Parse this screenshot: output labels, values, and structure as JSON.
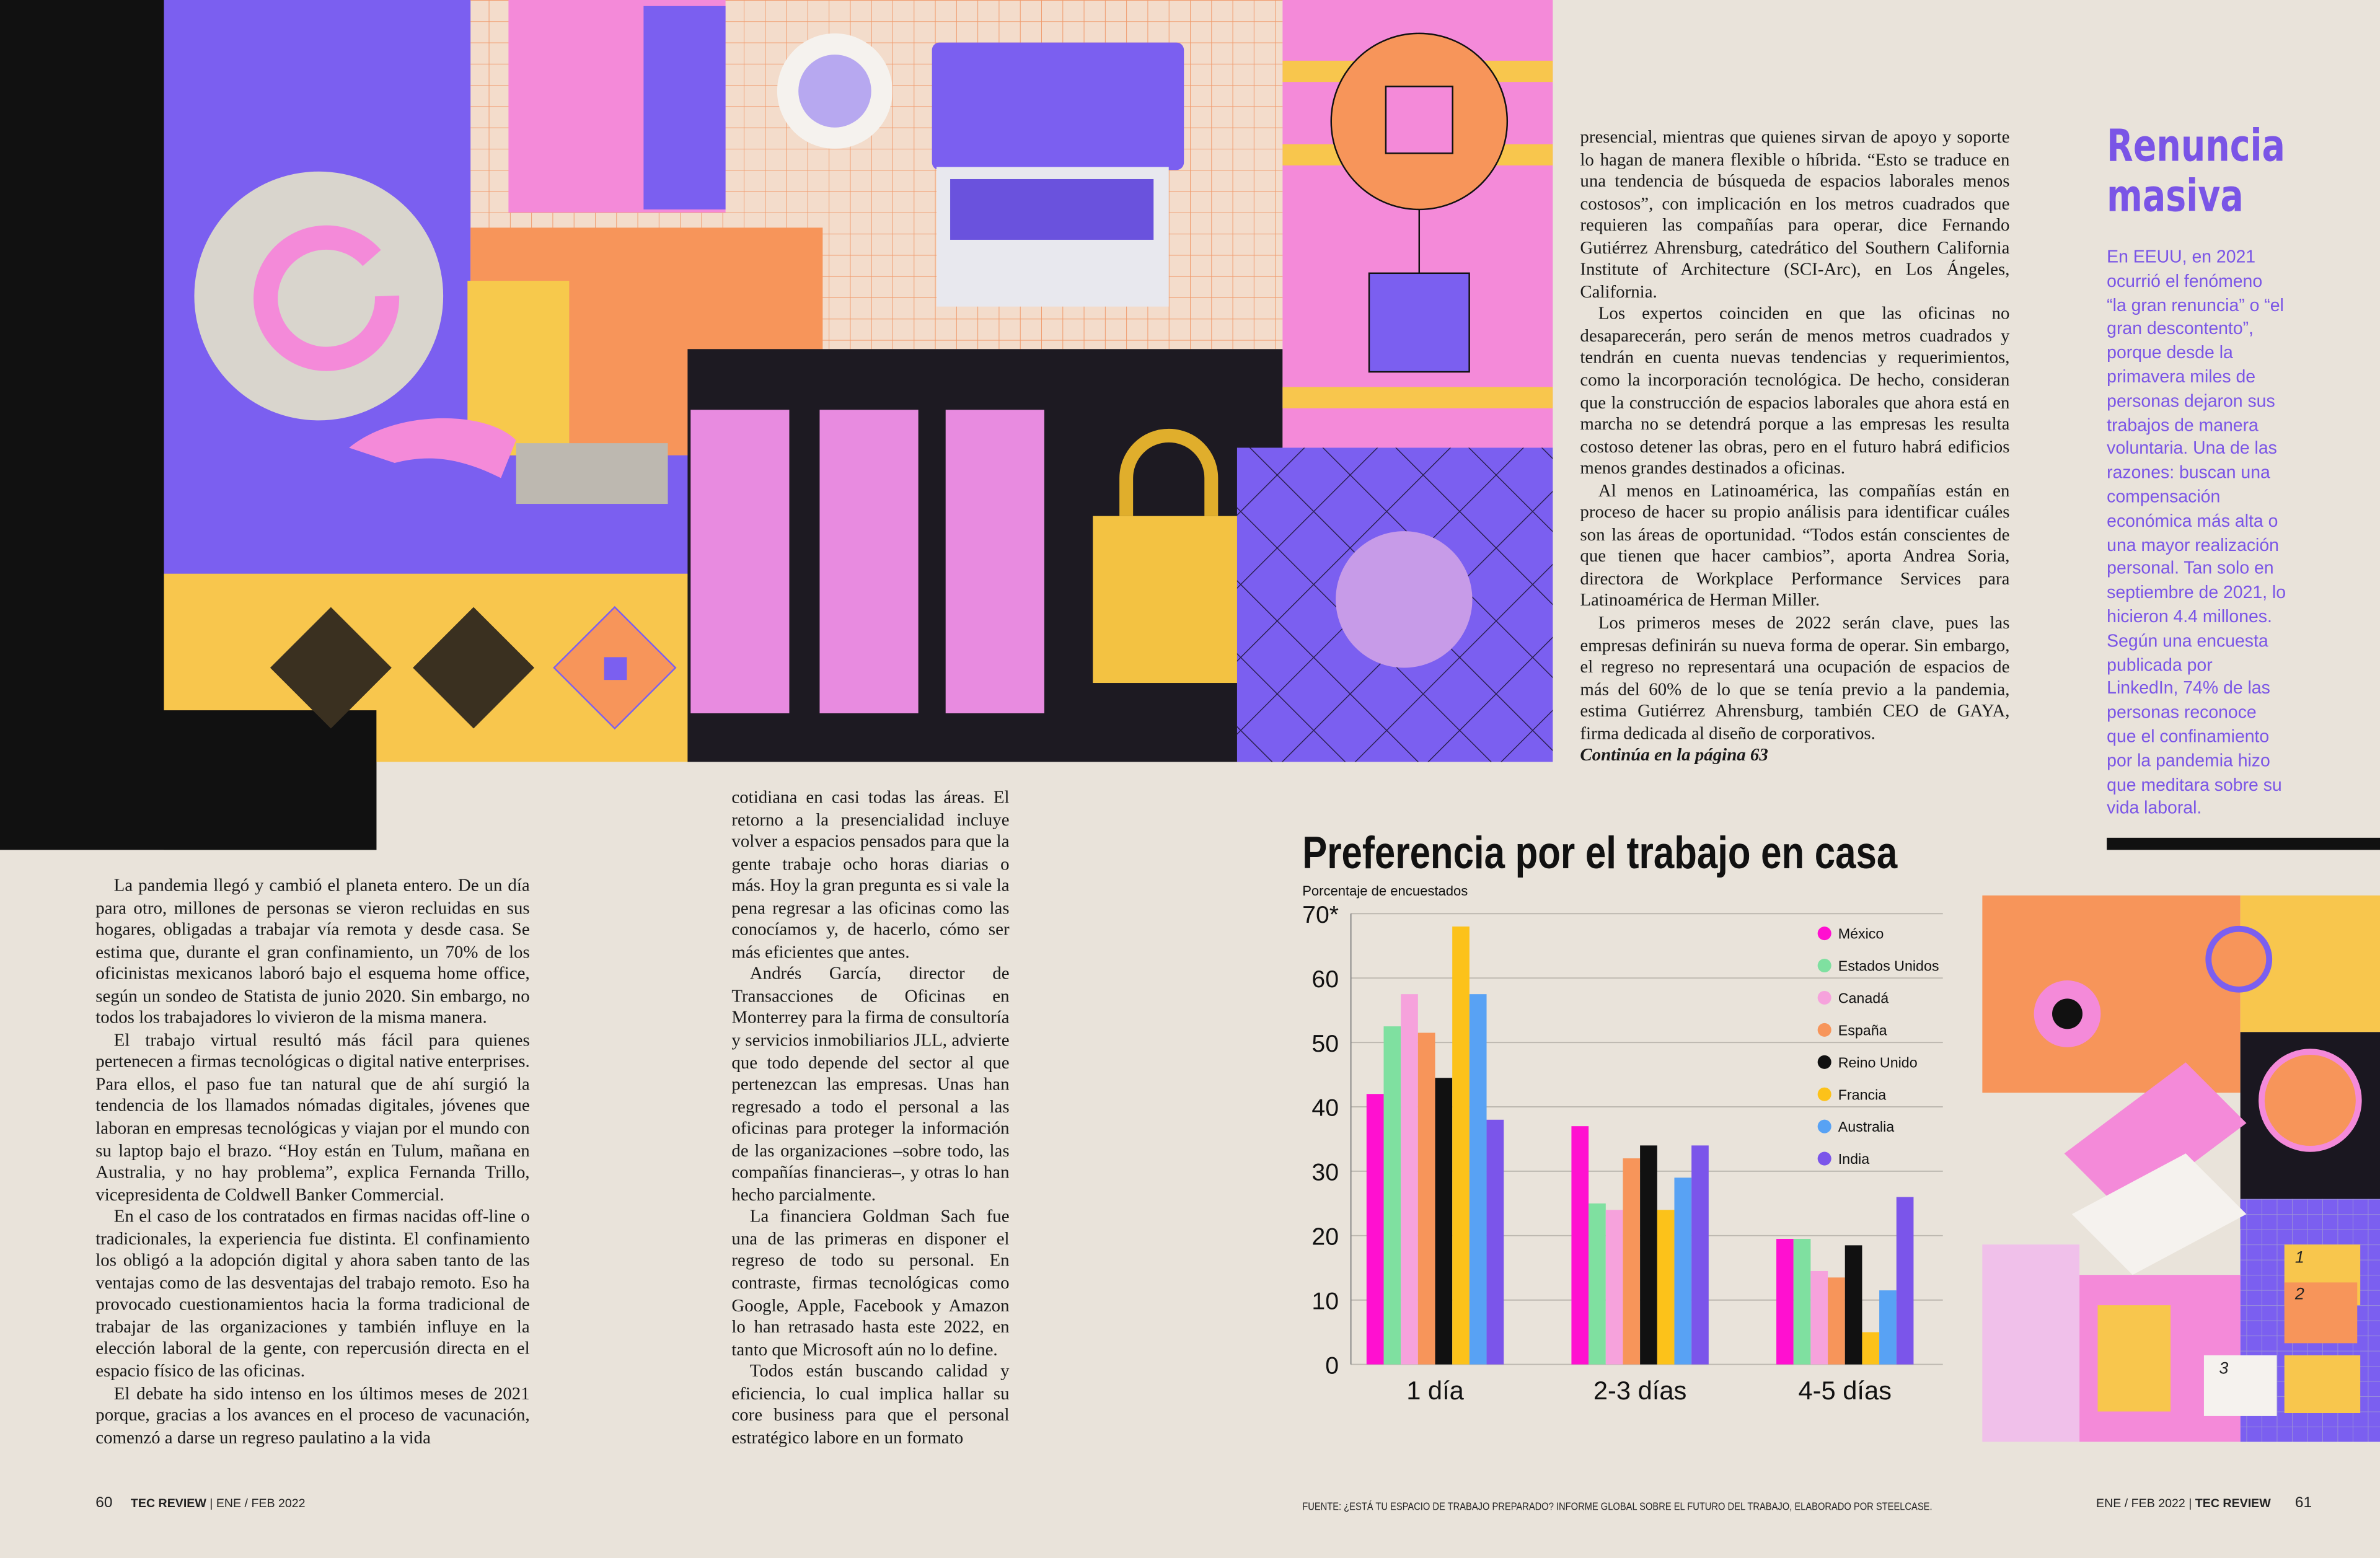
{
  "columns": [
    {
      "paragraphs": [
        "La pandemia llegó y cambió el planeta entero. De un día para otro, millones de personas se vieron recluidas en sus hogares, obligadas a trabajar vía remota y desde casa. Se estima que, durante el gran confinamiento, un 70% de los oficinistas mexicanos laboró bajo el esquema home office, según un sondeo de Statista de junio 2020. Sin embargo, no todos los trabajadores lo vivieron de la misma manera.",
        "El trabajo virtual resultó más fácil para quienes pertenecen a firmas tecnológicas o digital native enterprises. Para ellos, el paso fue tan natural que de ahí surgió la tendencia de los llamados nómadas digitales, jóvenes que laboran en empresas tecnológicas y viajan por el mundo con su laptop bajo el brazo. “Hoy están en Tulum, mañana en Australia, y no hay problema”, explica Fernanda Trillo, vicepresidenta de Coldwell Banker Commercial.",
        "En el caso de los contratados en firmas nacidas off-line o tradicionales, la experiencia fue distinta. El confinamiento los obligó a la adopción digital y ahora saben tanto de las ventajas como de las desventajas del trabajo remoto. Eso ha provocado cuestionamientos hacia la forma tradicional de trabajar de las organizaciones y también influye en la elección laboral de la gente, con repercusión directa en el espacio físico de las oficinas.",
        "El debate ha sido intenso en los últimos meses de 2021 porque, gracias a los avances en el proceso de vacunación, comenzó a darse un regreso paulatino a la vida"
      ]
    },
    {
      "paragraphs": [
        "cotidiana en casi todas las áreas. El retorno a la presencialidad incluye volver a espacios pensados para que la gente trabaje ocho horas diarias o más. Hoy la gran pregunta es si vale la pena regresar a las oficinas como las conocíamos y, de hacerlo, cómo ser más eficientes que antes.",
        "Andrés García, director de Transacciones de Oficinas en Monterrey para la firma de consultoría y servicios inmobiliarios JLL, advierte que todo depende del sector al que pertenezcan las empresas. Unas han regresado a todo el personal a las oficinas para proteger la información de las organizaciones –sobre todo, las compañías financieras–, y otras lo han hecho parcialmente.",
        "La financiera Goldman Sach fue una de las primeras en disponer el regreso de todo su personal. En contraste, firmas tecnológicas como Google, Apple, Facebook y Amazon lo han retrasado hasta este 2022, en tanto que Microsoft aún no lo define.",
        "Todos están buscando calidad y eficiencia, lo cual implica hallar su core business para que el personal estratégico labore en un formato"
      ]
    },
    {
      "paragraphs": [
        "presencial, mientras que quienes sirvan de apoyo y soporte lo hagan de manera flexible o híbrida. “Esto se traduce en una tendencia de búsqueda de espacios laborales menos costosos”, con implicación en los metros cuadrados que requieren las compañías para operar, dice Fernando Gutiérrez Ahrensburg, catedrático del Southern California Institute of Architecture (SCI-Arc), en Los Ángeles, California.",
        "Los expertos coinciden en que las oficinas no desaparecerán, pero serán de menos metros cuadrados y tendrán en cuenta nuevas tendencias y requerimientos, como la incorporación tecnológica. De hecho, consideran que la construcción de espacios laborales que ahora está en marcha no se detendrá porque a las empresas les resulta costoso detener las obras, pero en el futuro habrá edificios menos grandes destinados a oficinas.",
        "Al menos en Latinoamérica, las compañías están en proceso de hacer su propio análisis para identificar cuáles son las áreas de oportunidad. “Todos están conscientes de que tienen que hacer cambios”, aporta Andrea Soria, directora de Workplace Performance Services para Latinoamérica de Herman Miller.",
        "Los primeros meses de 2022 serán clave, pues las empresas definirán su nueva forma de operar. Sin embargo, el regreso no representará una ocupación de espacios de más del 60% de lo que se tenía previo a la pandemia, estima Gutiérrez Ahrensburg, también CEO de GAYA, firma dedicada al diseño de corporativos."
      ],
      "continued": "Continúa en la página 63"
    }
  ],
  "sidebar": {
    "title": "Renuncia masiva",
    "body": "En EEUU, en 2021 ocurrió el fenómeno “la gran renuncia” o “el gran descontento”, porque desde la primavera miles de personas dejaron sus trabajos de manera voluntaria. Una de las razones: buscan una compensación económica más alta o una mayor realización personal. Tan solo en septiembre de 2021, lo hicieron 4.4 millones. Según una encuesta publicada por LinkedIn, 74% de las personas reconoce que el confinamiento por la pandemia hizo que meditara sobre su vida laboral."
  },
  "chart_data": {
    "type": "bar",
    "title": "Preferencia por el trabajo en casa",
    "y_label": "Porcentaje de encuestados",
    "categories": [
      "1 día",
      "2-3 días",
      "4-5 días"
    ],
    "series": [
      {
        "name": "México",
        "color": "#ff10d0",
        "values": [
          42,
          37,
          19.5
        ]
      },
      {
        "name": "Estados Unidos",
        "color": "#7fe0a0",
        "values": [
          52.5,
          25,
          19.5
        ]
      },
      {
        "name": "Canadá",
        "color": "#f6a2dc",
        "values": [
          57.5,
          24,
          14.5
        ]
      },
      {
        "name": "España",
        "color": "#f7955a",
        "values": [
          51.5,
          32,
          13.5
        ]
      },
      {
        "name": "Reino Unido",
        "color": "#111111",
        "values": [
          44.5,
          34,
          18.5
        ]
      },
      {
        "name": "Francia",
        "color": "#fcc21a",
        "values": [
          68,
          24,
          5
        ]
      },
      {
        "name": "Australia",
        "color": "#58a2f4",
        "values": [
          57.5,
          29,
          11.5
        ]
      },
      {
        "name": "India",
        "color": "#7b55ea",
        "values": [
          38,
          34,
          26
        ]
      }
    ],
    "ylim": [
      0,
      70
    ],
    "yticks": [
      0,
      10,
      20,
      30,
      40,
      50,
      60,
      {
        "value": 70,
        "label": "70*"
      }
    ],
    "grid": true,
    "legend": "upper-right",
    "source": "FUENTE: ¿ESTÁ TU ESPACIO DE TRABAJO PREPARADO? INFORME GLOBAL SOBRE EL FUTURO DEL TRABAJO, ELABORADO POR STEELCASE."
  },
  "illustration": {
    "labels": [
      "1",
      "2",
      "3"
    ]
  },
  "footer": {
    "left": {
      "page": "60",
      "brand": "TEC REVIEW",
      "date": "ENE / FEB 2022"
    },
    "right": {
      "date": "ENE / FEB 2022",
      "brand": "TEC REVIEW",
      "page": "61"
    }
  }
}
